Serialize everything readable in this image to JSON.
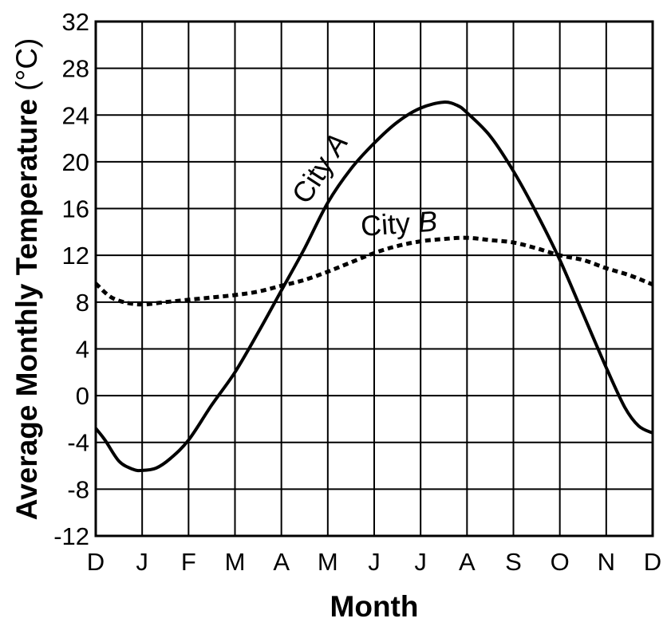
{
  "chart_data": {
    "type": "line",
    "title": "",
    "xlabel": "Month",
    "ylabel_main": "Average Monthly Temperature",
    "ylabel_unit": "(°C)",
    "categories": [
      "D",
      "J",
      "F",
      "M",
      "A",
      "M",
      "J",
      "J",
      "A",
      "S",
      "O",
      "N",
      "D"
    ],
    "ylim": [
      -12,
      32
    ],
    "yticks": [
      "32",
      "28",
      "24",
      "20",
      "16",
      "12",
      "8",
      "4",
      "0",
      "-4",
      "-8",
      "-12"
    ],
    "grid": true,
    "series": [
      {
        "name": "City A",
        "label_prefix": "City",
        "label_letter": "A",
        "style": "solid",
        "color": "#000000",
        "points": [
          [
            0,
            -2.8
          ],
          [
            0.2,
            -3.8
          ],
          [
            0.5,
            -5.6
          ],
          [
            0.8,
            -6.3
          ],
          [
            1.0,
            -6.4
          ],
          [
            1.3,
            -6.2
          ],
          [
            1.6,
            -5.4
          ],
          [
            2.0,
            -3.8
          ],
          [
            2.5,
            -0.8
          ],
          [
            3.0,
            2.0
          ],
          [
            3.5,
            5.4
          ],
          [
            4.0,
            9.0
          ],
          [
            4.5,
            12.6
          ],
          [
            5.0,
            16.5
          ],
          [
            5.5,
            19.4
          ],
          [
            6.0,
            21.6
          ],
          [
            6.5,
            23.4
          ],
          [
            7.0,
            24.6
          ],
          [
            7.5,
            25.1
          ],
          [
            7.8,
            24.8
          ],
          [
            8.0,
            24.2
          ],
          [
            8.5,
            22.2
          ],
          [
            9.0,
            19.2
          ],
          [
            9.5,
            15.6
          ],
          [
            10.0,
            11.6
          ],
          [
            10.5,
            7.0
          ],
          [
            11.0,
            2.4
          ],
          [
            11.4,
            -1.0
          ],
          [
            11.7,
            -2.6
          ],
          [
            12.0,
            -3.2
          ]
        ]
      },
      {
        "name": "City B",
        "label_prefix": "City",
        "label_letter": "B",
        "style": "dashed",
        "color": "#000000",
        "points": [
          [
            0,
            9.6
          ],
          [
            0.3,
            8.5
          ],
          [
            0.6,
            8.0
          ],
          [
            1.0,
            7.8
          ],
          [
            1.5,
            8.0
          ],
          [
            2.0,
            8.2
          ],
          [
            2.5,
            8.4
          ],
          [
            3.0,
            8.6
          ],
          [
            3.5,
            8.9
          ],
          [
            4.0,
            9.4
          ],
          [
            4.5,
            9.9
          ],
          [
            5.0,
            10.6
          ],
          [
            5.5,
            11.4
          ],
          [
            6.0,
            12.2
          ],
          [
            6.5,
            12.8
          ],
          [
            7.0,
            13.2
          ],
          [
            7.5,
            13.4
          ],
          [
            8.0,
            13.5
          ],
          [
            8.5,
            13.3
          ],
          [
            9.0,
            13.1
          ],
          [
            9.5,
            12.6
          ],
          [
            10.0,
            12.0
          ],
          [
            10.5,
            11.6
          ],
          [
            11.0,
            10.9
          ],
          [
            11.5,
            10.3
          ],
          [
            12.0,
            9.5
          ]
        ]
      }
    ]
  }
}
